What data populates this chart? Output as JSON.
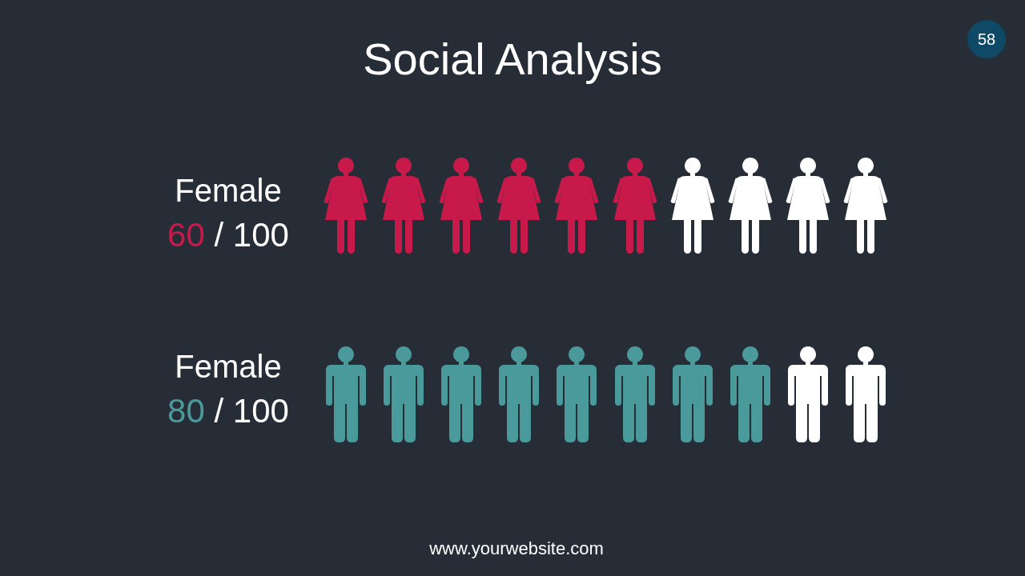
{
  "chart_data": {
    "type": "other",
    "title": "Social Analysis",
    "categories": [
      "Female",
      "Female"
    ],
    "values": [
      60,
      80
    ],
    "value_labels": [
      "60 / 100",
      "80 / 100"
    ],
    "colors": [
      "#c8194b",
      "#4a9a9c"
    ],
    "annotations": [
      "58",
      "www.yourwebsite.com"
    ]
  }
}
